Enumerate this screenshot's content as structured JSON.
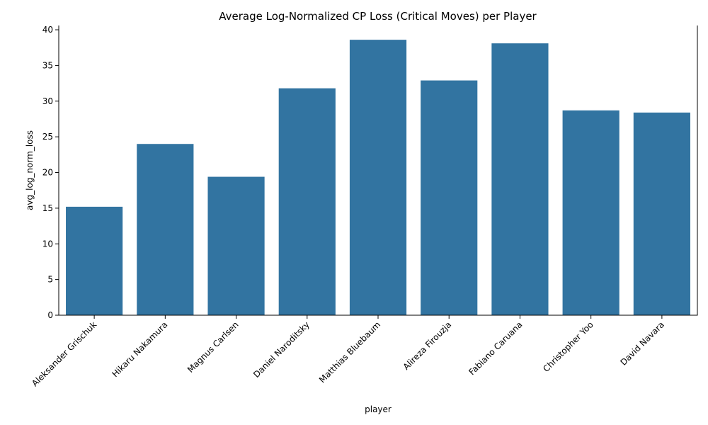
{
  "chart_data": {
    "type": "bar",
    "title": "Average Log-Normalized CP Loss (Critical Moves) per Player",
    "xlabel": "player",
    "ylabel": "avg_log_norm_loss",
    "categories": [
      "Aleksander Grischuk",
      "Hikaru Nakamura",
      "Magnus Carlsen",
      "Daniel Naroditsky",
      "Matthias Bluebaum",
      "Alireza Firouzja",
      "Fabiano Caruana",
      "Christopher Yoo",
      "David Navara"
    ],
    "values": [
      15.2,
      24.0,
      19.4,
      31.8,
      38.6,
      32.9,
      38.1,
      28.7,
      28.4
    ],
    "ylim": [
      0,
      40.6
    ],
    "yticks": [
      0,
      5,
      10,
      15,
      20,
      25,
      30,
      35,
      40
    ],
    "grid": false,
    "bar_color": "#3274a1"
  }
}
